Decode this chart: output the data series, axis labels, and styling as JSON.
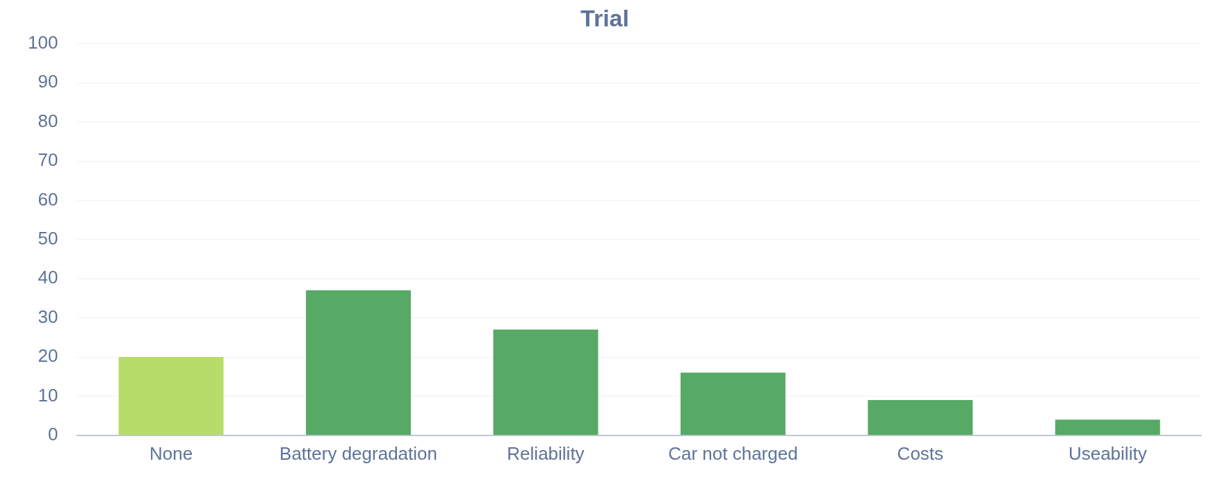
{
  "chart_data": {
    "type": "bar",
    "title": "Trial",
    "categories": [
      "None",
      "Battery degradation",
      "Reliability",
      "Car not charged",
      "Costs",
      "Useability"
    ],
    "values": [
      20,
      37,
      27,
      16,
      9,
      4
    ],
    "colors": [
      "#b8dc6a",
      "#57a966",
      "#57a966",
      "#57a966",
      "#57a966",
      "#57a966"
    ],
    "ylim": [
      0,
      100
    ],
    "yticks": [
      0,
      10,
      20,
      30,
      40,
      50,
      60,
      70,
      80,
      90,
      100
    ],
    "grid": "y"
  }
}
